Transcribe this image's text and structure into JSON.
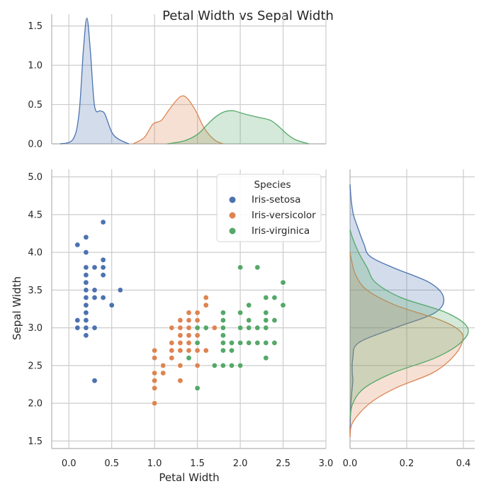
{
  "chart_data": {
    "type": "scatter",
    "title": "Petal Width vs Sepal Width",
    "xlabel": "Petal Width",
    "ylabel": "Sepal Width",
    "xlim": [
      -0.2,
      3.0
    ],
    "ylim": [
      1.4,
      5.1
    ],
    "x_ticks": [
      "0.0",
      "0.5",
      "1.0",
      "1.5",
      "2.0",
      "2.5",
      "3.0"
    ],
    "y_ticks": [
      "1.5",
      "2.0",
      "2.5",
      "3.0",
      "3.5",
      "4.0",
      "4.5",
      "5.0"
    ],
    "top_marginal_ylim": [
      0,
      1.65
    ],
    "top_marginal_ticks": [
      "0.0",
      "0.5",
      "1.0",
      "1.5"
    ],
    "right_marginal_xlim": [
      0,
      0.44
    ],
    "right_marginal_ticks": [
      "0.0",
      "0.2",
      "0.4"
    ],
    "grid": true,
    "legend": {
      "title": "Species",
      "position": "top-right"
    },
    "series": [
      {
        "name": "Iris-setosa",
        "color": "#4c72b0",
        "points": [
          [
            0.1,
            3.0
          ],
          [
            0.1,
            3.1
          ],
          [
            0.1,
            4.1
          ],
          [
            0.2,
            2.9
          ],
          [
            0.2,
            3.0
          ],
          [
            0.2,
            3.1
          ],
          [
            0.2,
            3.2
          ],
          [
            0.2,
            3.3
          ],
          [
            0.2,
            3.4
          ],
          [
            0.2,
            3.5
          ],
          [
            0.2,
            3.6
          ],
          [
            0.2,
            3.7
          ],
          [
            0.2,
            3.8
          ],
          [
            0.2,
            4.0
          ],
          [
            0.2,
            4.2
          ],
          [
            0.3,
            2.3
          ],
          [
            0.3,
            3.0
          ],
          [
            0.3,
            3.4
          ],
          [
            0.3,
            3.5
          ],
          [
            0.3,
            3.8
          ],
          [
            0.4,
            3.4
          ],
          [
            0.4,
            3.7
          ],
          [
            0.4,
            3.8
          ],
          [
            0.4,
            3.9
          ],
          [
            0.4,
            4.4
          ],
          [
            0.5,
            3.3
          ],
          [
            0.6,
            3.5
          ]
        ],
        "kde_top": [
          [
            -0.1,
            0.0
          ],
          [
            0.05,
            0.06
          ],
          [
            0.12,
            0.4
          ],
          [
            0.17,
            1.2
          ],
          [
            0.21,
            1.6
          ],
          [
            0.25,
            1.2
          ],
          [
            0.3,
            0.48
          ],
          [
            0.37,
            0.42
          ],
          [
            0.42,
            0.38
          ],
          [
            0.5,
            0.15
          ],
          [
            0.58,
            0.06
          ],
          [
            0.7,
            0.0
          ]
        ],
        "kde_right": [
          [
            1.6,
            0.0
          ],
          [
            2.0,
            0.003
          ],
          [
            2.3,
            0.01
          ],
          [
            2.4,
            0.008
          ],
          [
            2.6,
            0.01
          ],
          [
            2.8,
            0.03
          ],
          [
            3.0,
            0.16
          ],
          [
            3.2,
            0.3
          ],
          [
            3.4,
            0.33
          ],
          [
            3.6,
            0.28
          ],
          [
            3.8,
            0.15
          ],
          [
            3.95,
            0.07
          ],
          [
            4.1,
            0.05
          ],
          [
            4.3,
            0.03
          ],
          [
            4.5,
            0.012
          ],
          [
            4.7,
            0.004
          ],
          [
            4.9,
            0.0
          ]
        ]
      },
      {
        "name": "Iris-versicolor",
        "color": "#dd8452",
        "points": [
          [
            1.0,
            2.0
          ],
          [
            1.0,
            2.2
          ],
          [
            1.0,
            2.3
          ],
          [
            1.0,
            2.4
          ],
          [
            1.0,
            2.6
          ],
          [
            1.0,
            2.7
          ],
          [
            1.1,
            2.4
          ],
          [
            1.1,
            2.5
          ],
          [
            1.2,
            2.6
          ],
          [
            1.2,
            2.7
          ],
          [
            1.2,
            2.8
          ],
          [
            1.2,
            3.0
          ],
          [
            1.3,
            2.3
          ],
          [
            1.3,
            2.5
          ],
          [
            1.3,
            2.7
          ],
          [
            1.3,
            2.8
          ],
          [
            1.3,
            2.9
          ],
          [
            1.3,
            3.0
          ],
          [
            1.3,
            3.1
          ],
          [
            1.4,
            2.7
          ],
          [
            1.4,
            2.8
          ],
          [
            1.4,
            2.9
          ],
          [
            1.4,
            3.0
          ],
          [
            1.4,
            3.1
          ],
          [
            1.4,
            3.2
          ],
          [
            1.5,
            2.5
          ],
          [
            1.5,
            2.7
          ],
          [
            1.5,
            2.8
          ],
          [
            1.5,
            2.9
          ],
          [
            1.5,
            3.0
          ],
          [
            1.5,
            3.1
          ],
          [
            1.5,
            3.2
          ],
          [
            1.6,
            2.7
          ],
          [
            1.6,
            3.3
          ],
          [
            1.6,
            3.4
          ],
          [
            1.7,
            3.0
          ]
        ],
        "kde_top": [
          [
            0.75,
            0.0
          ],
          [
            0.88,
            0.08
          ],
          [
            0.98,
            0.25
          ],
          [
            1.08,
            0.3
          ],
          [
            1.18,
            0.45
          ],
          [
            1.3,
            0.6
          ],
          [
            1.38,
            0.58
          ],
          [
            1.48,
            0.42
          ],
          [
            1.58,
            0.2
          ],
          [
            1.7,
            0.05
          ],
          [
            1.8,
            0.0
          ]
        ],
        "kde_right": [
          [
            1.55,
            0.0
          ],
          [
            1.75,
            0.01
          ],
          [
            2.0,
            0.07
          ],
          [
            2.2,
            0.16
          ],
          [
            2.4,
            0.29
          ],
          [
            2.6,
            0.36
          ],
          [
            2.8,
            0.395
          ],
          [
            2.95,
            0.39
          ],
          [
            3.1,
            0.32
          ],
          [
            3.3,
            0.16
          ],
          [
            3.5,
            0.06
          ],
          [
            3.7,
            0.02
          ],
          [
            3.9,
            0.005
          ],
          [
            4.0,
            0.0
          ]
        ]
      },
      {
        "name": "Iris-virginica",
        "color": "#55a868",
        "points": [
          [
            1.4,
            2.6
          ],
          [
            1.5,
            2.2
          ],
          [
            1.5,
            2.8
          ],
          [
            1.5,
            3.0
          ],
          [
            1.6,
            3.0
          ],
          [
            1.7,
            2.5
          ],
          [
            1.8,
            2.5
          ],
          [
            1.8,
            2.7
          ],
          [
            1.8,
            2.8
          ],
          [
            1.8,
            2.9
          ],
          [
            1.8,
            3.0
          ],
          [
            1.8,
            3.1
          ],
          [
            1.8,
            3.2
          ],
          [
            1.9,
            2.5
          ],
          [
            1.9,
            2.7
          ],
          [
            1.9,
            2.8
          ],
          [
            2.0,
            2.5
          ],
          [
            2.0,
            2.8
          ],
          [
            2.0,
            3.0
          ],
          [
            2.0,
            3.2
          ],
          [
            2.0,
            3.8
          ],
          [
            2.1,
            2.8
          ],
          [
            2.1,
            3.0
          ],
          [
            2.1,
            3.1
          ],
          [
            2.1,
            3.3
          ],
          [
            2.2,
            2.8
          ],
          [
            2.2,
            3.0
          ],
          [
            2.2,
            3.8
          ],
          [
            2.3,
            2.6
          ],
          [
            2.3,
            2.8
          ],
          [
            2.3,
            3.0
          ],
          [
            2.3,
            3.1
          ],
          [
            2.3,
            3.2
          ],
          [
            2.3,
            3.4
          ],
          [
            2.4,
            2.8
          ],
          [
            2.4,
            3.1
          ],
          [
            2.4,
            3.4
          ],
          [
            2.5,
            3.3
          ],
          [
            2.5,
            3.6
          ]
        ],
        "kde_top": [
          [
            1.15,
            0.0
          ],
          [
            1.35,
            0.04
          ],
          [
            1.5,
            0.12
          ],
          [
            1.62,
            0.25
          ],
          [
            1.72,
            0.35
          ],
          [
            1.82,
            0.41
          ],
          [
            1.92,
            0.42
          ],
          [
            2.05,
            0.38
          ],
          [
            2.2,
            0.34
          ],
          [
            2.35,
            0.3
          ],
          [
            2.45,
            0.22
          ],
          [
            2.55,
            0.12
          ],
          [
            2.65,
            0.05
          ],
          [
            2.8,
            0.0
          ]
        ],
        "kde_right": [
          [
            1.8,
            0.0
          ],
          [
            2.0,
            0.01
          ],
          [
            2.2,
            0.05
          ],
          [
            2.4,
            0.15
          ],
          [
            2.6,
            0.3
          ],
          [
            2.8,
            0.39
          ],
          [
            3.0,
            0.415
          ],
          [
            3.2,
            0.34
          ],
          [
            3.4,
            0.18
          ],
          [
            3.6,
            0.09
          ],
          [
            3.8,
            0.06
          ],
          [
            4.0,
            0.03
          ],
          [
            4.2,
            0.008
          ],
          [
            4.3,
            0.0
          ]
        ]
      }
    ]
  }
}
